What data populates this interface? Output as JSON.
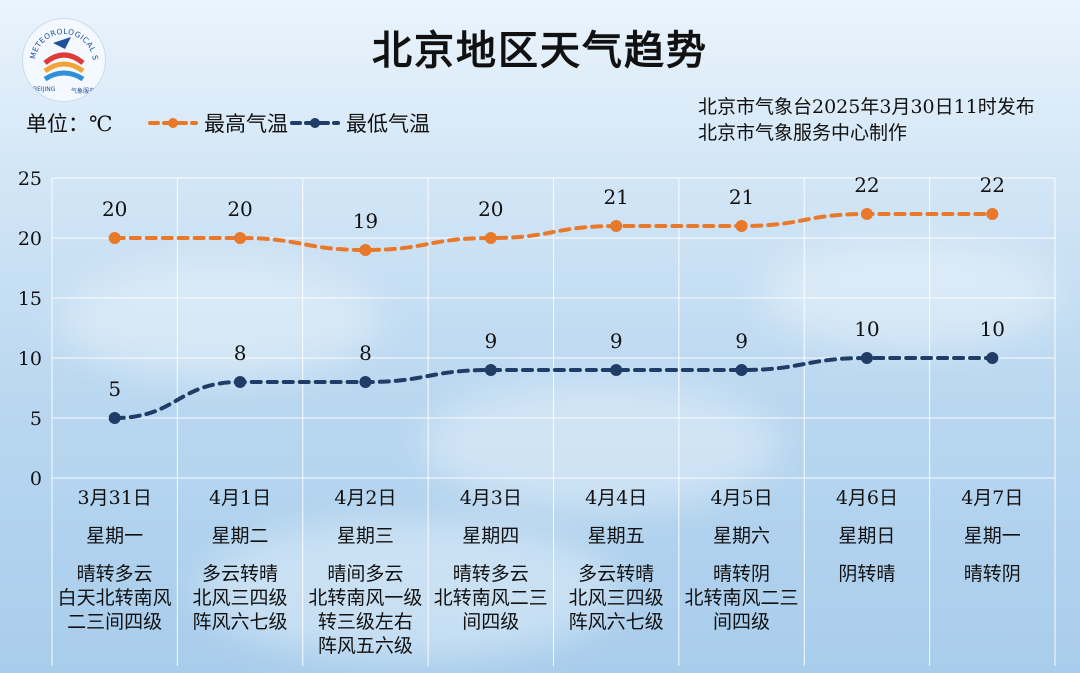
{
  "title": "北京地区天气趋势",
  "unit_label": "单位：℃",
  "publisher": {
    "line1": "北京市气象台2025年3月30日11时发布",
    "line2": "北京市气象服务中心制作"
  },
  "logo": {
    "text": "METEOROLOGICAL SERVICE",
    "text2": "BEIJING",
    "text3": "气象服务"
  },
  "colors": {
    "high": "#e8792b",
    "low": "#1f3d66",
    "grid": "#ffffff"
  },
  "chart_data": {
    "type": "line",
    "categories": [
      "3月31日",
      "4月1日",
      "4月2日",
      "4月3日",
      "4月4日",
      "4月5日",
      "4月6日",
      "4月7日"
    ],
    "series": [
      {
        "name": "最高气温",
        "values": [
          20,
          20,
          19,
          20,
          21,
          21,
          22,
          22
        ]
      },
      {
        "name": "最低气温",
        "values": [
          5,
          8,
          8,
          9,
          9,
          9,
          10,
          10
        ]
      }
    ],
    "ylim": [
      0,
      25
    ],
    "yticks": [
      0,
      5,
      10,
      15,
      20,
      25
    ],
    "grid": true,
    "legend": "top-left"
  },
  "days": [
    {
      "date": "3月31日",
      "weekday": "星期一",
      "weather": "晴转多云",
      "wind": "白天北转南风\n二三间四级"
    },
    {
      "date": "4月1日",
      "weekday": "星期二",
      "weather": "多云转晴",
      "wind": "北风三四级\n阵风六七级"
    },
    {
      "date": "4月2日",
      "weekday": "星期三",
      "weather": "晴间多云",
      "wind": "北转南风一级\n转三级左右\n阵风五六级"
    },
    {
      "date": "4月3日",
      "weekday": "星期四",
      "weather": "晴转多云",
      "wind": "北转南风二三\n间四级"
    },
    {
      "date": "4月4日",
      "weekday": "星期五",
      "weather": "多云转晴",
      "wind": "北风三四级\n阵风六七级"
    },
    {
      "date": "4月5日",
      "weekday": "星期六",
      "weather": "晴转阴",
      "wind": "北转南风二三\n间四级"
    },
    {
      "date": "4月6日",
      "weekday": "星期日",
      "weather": "阴转晴",
      "wind": ""
    },
    {
      "date": "4月7日",
      "weekday": "星期一",
      "weather": "晴转阴",
      "wind": ""
    }
  ]
}
